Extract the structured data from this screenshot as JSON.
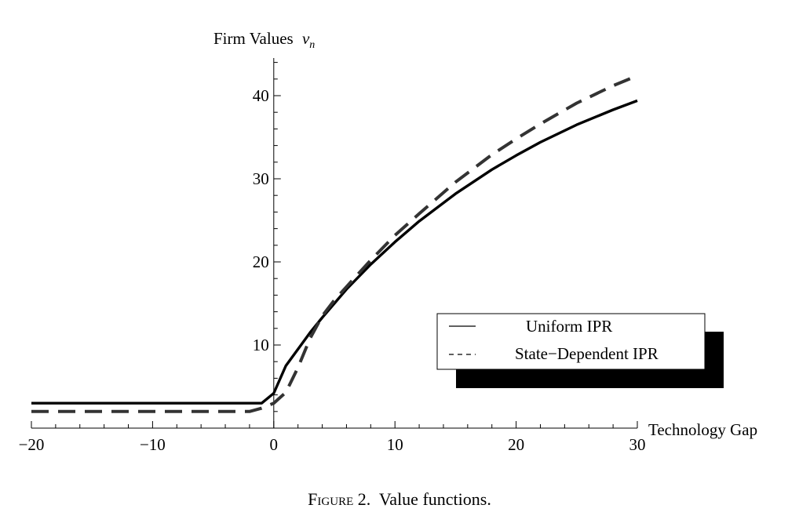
{
  "chart_data": {
    "type": "line",
    "xlabel": "Technology Gap",
    "ylabel": "Firm Values",
    "ylabel_var": "v",
    "ylabel_sub": "n",
    "xlim": [
      -20,
      30
    ],
    "ylim": [
      -0.5,
      45
    ],
    "x_ticks": [
      -20,
      -10,
      0,
      10,
      20,
      30
    ],
    "x_tick_labels": [
      "−20",
      "−10",
      "0",
      "10",
      "20",
      "30"
    ],
    "y_ticks": [
      10,
      20,
      30,
      40
    ],
    "y_tick_labels": [
      "10",
      "20",
      "30",
      "40"
    ],
    "grid": false,
    "legend_position": "lower-right",
    "series": [
      {
        "name": "Uniform IPR",
        "style": "solid",
        "color": "#000000",
        "x": [
          -20,
          -10,
          -1,
          0,
          1,
          2,
          3,
          4,
          5,
          6,
          8,
          10,
          12,
          15,
          18,
          20,
          22,
          25,
          28,
          30
        ],
        "y": [
          3,
          3,
          3,
          4.2,
          7.5,
          9.5,
          11.5,
          13.3,
          15,
          16.7,
          19.7,
          22.4,
          24.9,
          28.2,
          31.1,
          32.8,
          34.4,
          36.5,
          38.3,
          39.4
        ]
      },
      {
        "name": "State-Dependent IPR",
        "style": "dashed",
        "color": "#333333",
        "x": [
          -20,
          -10,
          -2,
          -1,
          0,
          1,
          2,
          3,
          4,
          5,
          6,
          8,
          10,
          12,
          15,
          18,
          20,
          22,
          25,
          28,
          30
        ],
        "y": [
          2,
          2,
          2,
          2.4,
          3,
          4.3,
          7.3,
          10.8,
          13.5,
          15.4,
          17,
          20.2,
          23.2,
          25.8,
          29.6,
          32.9,
          34.8,
          36.6,
          39.1,
          41.2,
          42.4
        ]
      }
    ],
    "legend": [
      "Uniform IPR",
      "State−Dependent IPR"
    ]
  },
  "caption": {
    "figure_label": "Figure 2.",
    "text": "Value functions."
  }
}
